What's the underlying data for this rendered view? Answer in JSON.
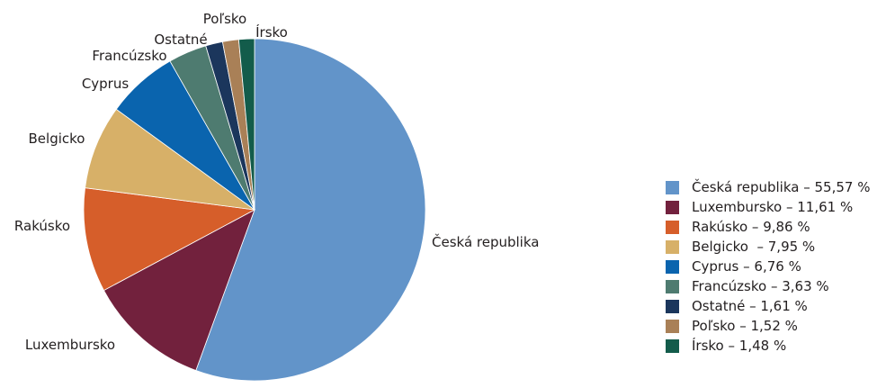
{
  "chart_data": {
    "type": "pie",
    "title": "",
    "slices": [
      {
        "label": "Česká republika",
        "legend": "Česká republika – 55,57 %",
        "value": 55.57,
        "color": "#6294c9"
      },
      {
        "label": "Luxembursko",
        "legend": "Luxembursko – 11,61 %",
        "value": 11.61,
        "color": "#72213d"
      },
      {
        "label": "Rakúsko",
        "legend": "Rakúsko – 9,86 %",
        "value": 9.86,
        "color": "#d65e2a"
      },
      {
        "label": "Belgicko",
        "legend": "Belgicko  – 7,95 %",
        "value": 7.95,
        "color": "#d7b068"
      },
      {
        "label": "Cyprus",
        "legend": "Cyprus – 6,76 %",
        "value": 6.76,
        "color": "#0a64ae"
      },
      {
        "label": "Francúzsko",
        "legend": "Francúzsko – 3,63 %",
        "value": 3.63,
        "color": "#4e7b70"
      },
      {
        "label": "Ostatné",
        "legend": "Ostatné – 1,61 %",
        "value": 1.61,
        "color": "#1b365c"
      },
      {
        "label": "Poľsko",
        "legend": "Poľsko – 1,52 %",
        "value": 1.52,
        "color": "#a98057"
      },
      {
        "label": "Írsko",
        "legend": "Írsko – 1,48 %",
        "value": 1.48,
        "color": "#135c4b"
      }
    ],
    "legend_position": "right"
  }
}
